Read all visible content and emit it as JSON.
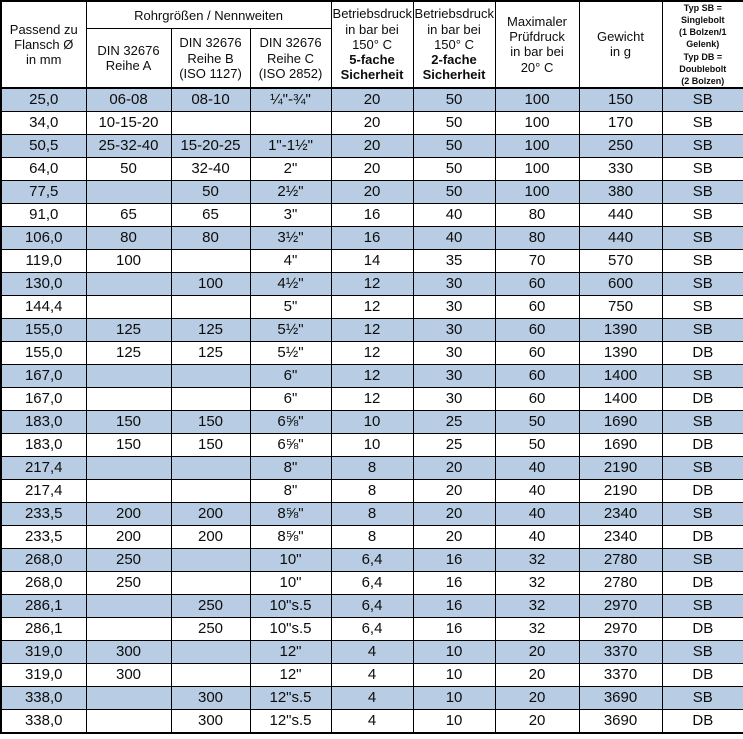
{
  "table": {
    "header": {
      "flansch": "Passend zu\nFlansch Ø\nin mm",
      "group": "Rohrgrößen / Nennweiten",
      "reihe_a": "DIN 32676\nReihe A",
      "reihe_b": "DIN 32676\nReihe B\n(ISO 1127)",
      "reihe_c": "DIN 32676\nReihe C\n(ISO 2852)",
      "betriebsdruck_150": "Betriebsdruck\nin bar bei\n150° C",
      "sicherheit_5fach": "5-fache\nSicherheit",
      "sicherheit_2fach": "2-fache\nSicherheit",
      "pruefdruck": "Maximaler\nPrüfdruck\nin bar bei\n20° C",
      "gewicht": "Gewicht\nin g",
      "typ": "Typ SB =\nSinglebolt\n(1 Bolzen/1 Gelenk)\nTyp DB =\nDoublebolt\n(2 Bolzen)"
    },
    "rows": [
      [
        "25,0",
        "06-08",
        "08-10",
        "¼\"-¾\"",
        "20",
        "50",
        "100",
        "150",
        "SB"
      ],
      [
        "34,0",
        "10-15-20",
        "",
        "",
        "20",
        "50",
        "100",
        "170",
        "SB"
      ],
      [
        "50,5",
        "25-32-40",
        "15-20-25",
        "1\"-1½\"",
        "20",
        "50",
        "100",
        "250",
        "SB"
      ],
      [
        "64,0",
        "50",
        "32-40",
        "2\"",
        "20",
        "50",
        "100",
        "330",
        "SB"
      ],
      [
        "77,5",
        "",
        "50",
        "2½\"",
        "20",
        "50",
        "100",
        "380",
        "SB"
      ],
      [
        "91,0",
        "65",
        "65",
        "3\"",
        "16",
        "40",
        "80",
        "440",
        "SB"
      ],
      [
        "106,0",
        "80",
        "80",
        "3½\"",
        "16",
        "40",
        "80",
        "440",
        "SB"
      ],
      [
        "119,0",
        "100",
        "",
        "4\"",
        "14",
        "35",
        "70",
        "570",
        "SB"
      ],
      [
        "130,0",
        "",
        "100",
        "4½\"",
        "12",
        "30",
        "60",
        "600",
        "SB"
      ],
      [
        "144,4",
        "",
        "",
        "5\"",
        "12",
        "30",
        "60",
        "750",
        "SB"
      ],
      [
        "155,0",
        "125",
        "125",
        "5½\"",
        "12",
        "30",
        "60",
        "1390",
        "SB"
      ],
      [
        "155,0",
        "125",
        "125",
        "5½\"",
        "12",
        "30",
        "60",
        "1390",
        "DB"
      ],
      [
        "167,0",
        "",
        "",
        "6\"",
        "12",
        "30",
        "60",
        "1400",
        "SB"
      ],
      [
        "167,0",
        "",
        "",
        "6\"",
        "12",
        "30",
        "60",
        "1400",
        "DB"
      ],
      [
        "183,0",
        "150",
        "150",
        "6⅝\"",
        "10",
        "25",
        "50",
        "1690",
        "SB"
      ],
      [
        "183,0",
        "150",
        "150",
        "6⅝\"",
        "10",
        "25",
        "50",
        "1690",
        "DB"
      ],
      [
        "217,4",
        "",
        "",
        "8\"",
        "8",
        "20",
        "40",
        "2190",
        "SB"
      ],
      [
        "217,4",
        "",
        "",
        "8\"",
        "8",
        "20",
        "40",
        "2190",
        "DB"
      ],
      [
        "233,5",
        "200",
        "200",
        "8⅝\"",
        "8",
        "20",
        "40",
        "2340",
        "SB"
      ],
      [
        "233,5",
        "200",
        "200",
        "8⅝\"",
        "8",
        "20",
        "40",
        "2340",
        "DB"
      ],
      [
        "268,0",
        "250",
        "",
        "10\"",
        "6,4",
        "16",
        "32",
        "2780",
        "SB"
      ],
      [
        "268,0",
        "250",
        "",
        "10\"",
        "6,4",
        "16",
        "32",
        "2780",
        "DB"
      ],
      [
        "286,1",
        "",
        "250",
        "10\"s.5",
        "6,4",
        "16",
        "32",
        "2970",
        "SB"
      ],
      [
        "286,1",
        "",
        "250",
        "10\"s.5",
        "6,4",
        "16",
        "32",
        "2970",
        "DB"
      ],
      [
        "319,0",
        "300",
        "",
        "12\"",
        "4",
        "10",
        "20",
        "3370",
        "SB"
      ],
      [
        "319,0",
        "300",
        "",
        "12\"",
        "4",
        "10",
        "20",
        "3370",
        "DB"
      ],
      [
        "338,0",
        "",
        "300",
        "12\"s.5",
        "4",
        "10",
        "20",
        "3690",
        "SB"
      ],
      [
        "338,0",
        "",
        "300",
        "12\"s.5",
        "4",
        "10",
        "20",
        "3690",
        "DB"
      ]
    ],
    "colors": {
      "row_highlight": "#b8cce4",
      "row_plain": "#ffffff",
      "border": "#000000",
      "text": "#0d0d0d"
    }
  }
}
